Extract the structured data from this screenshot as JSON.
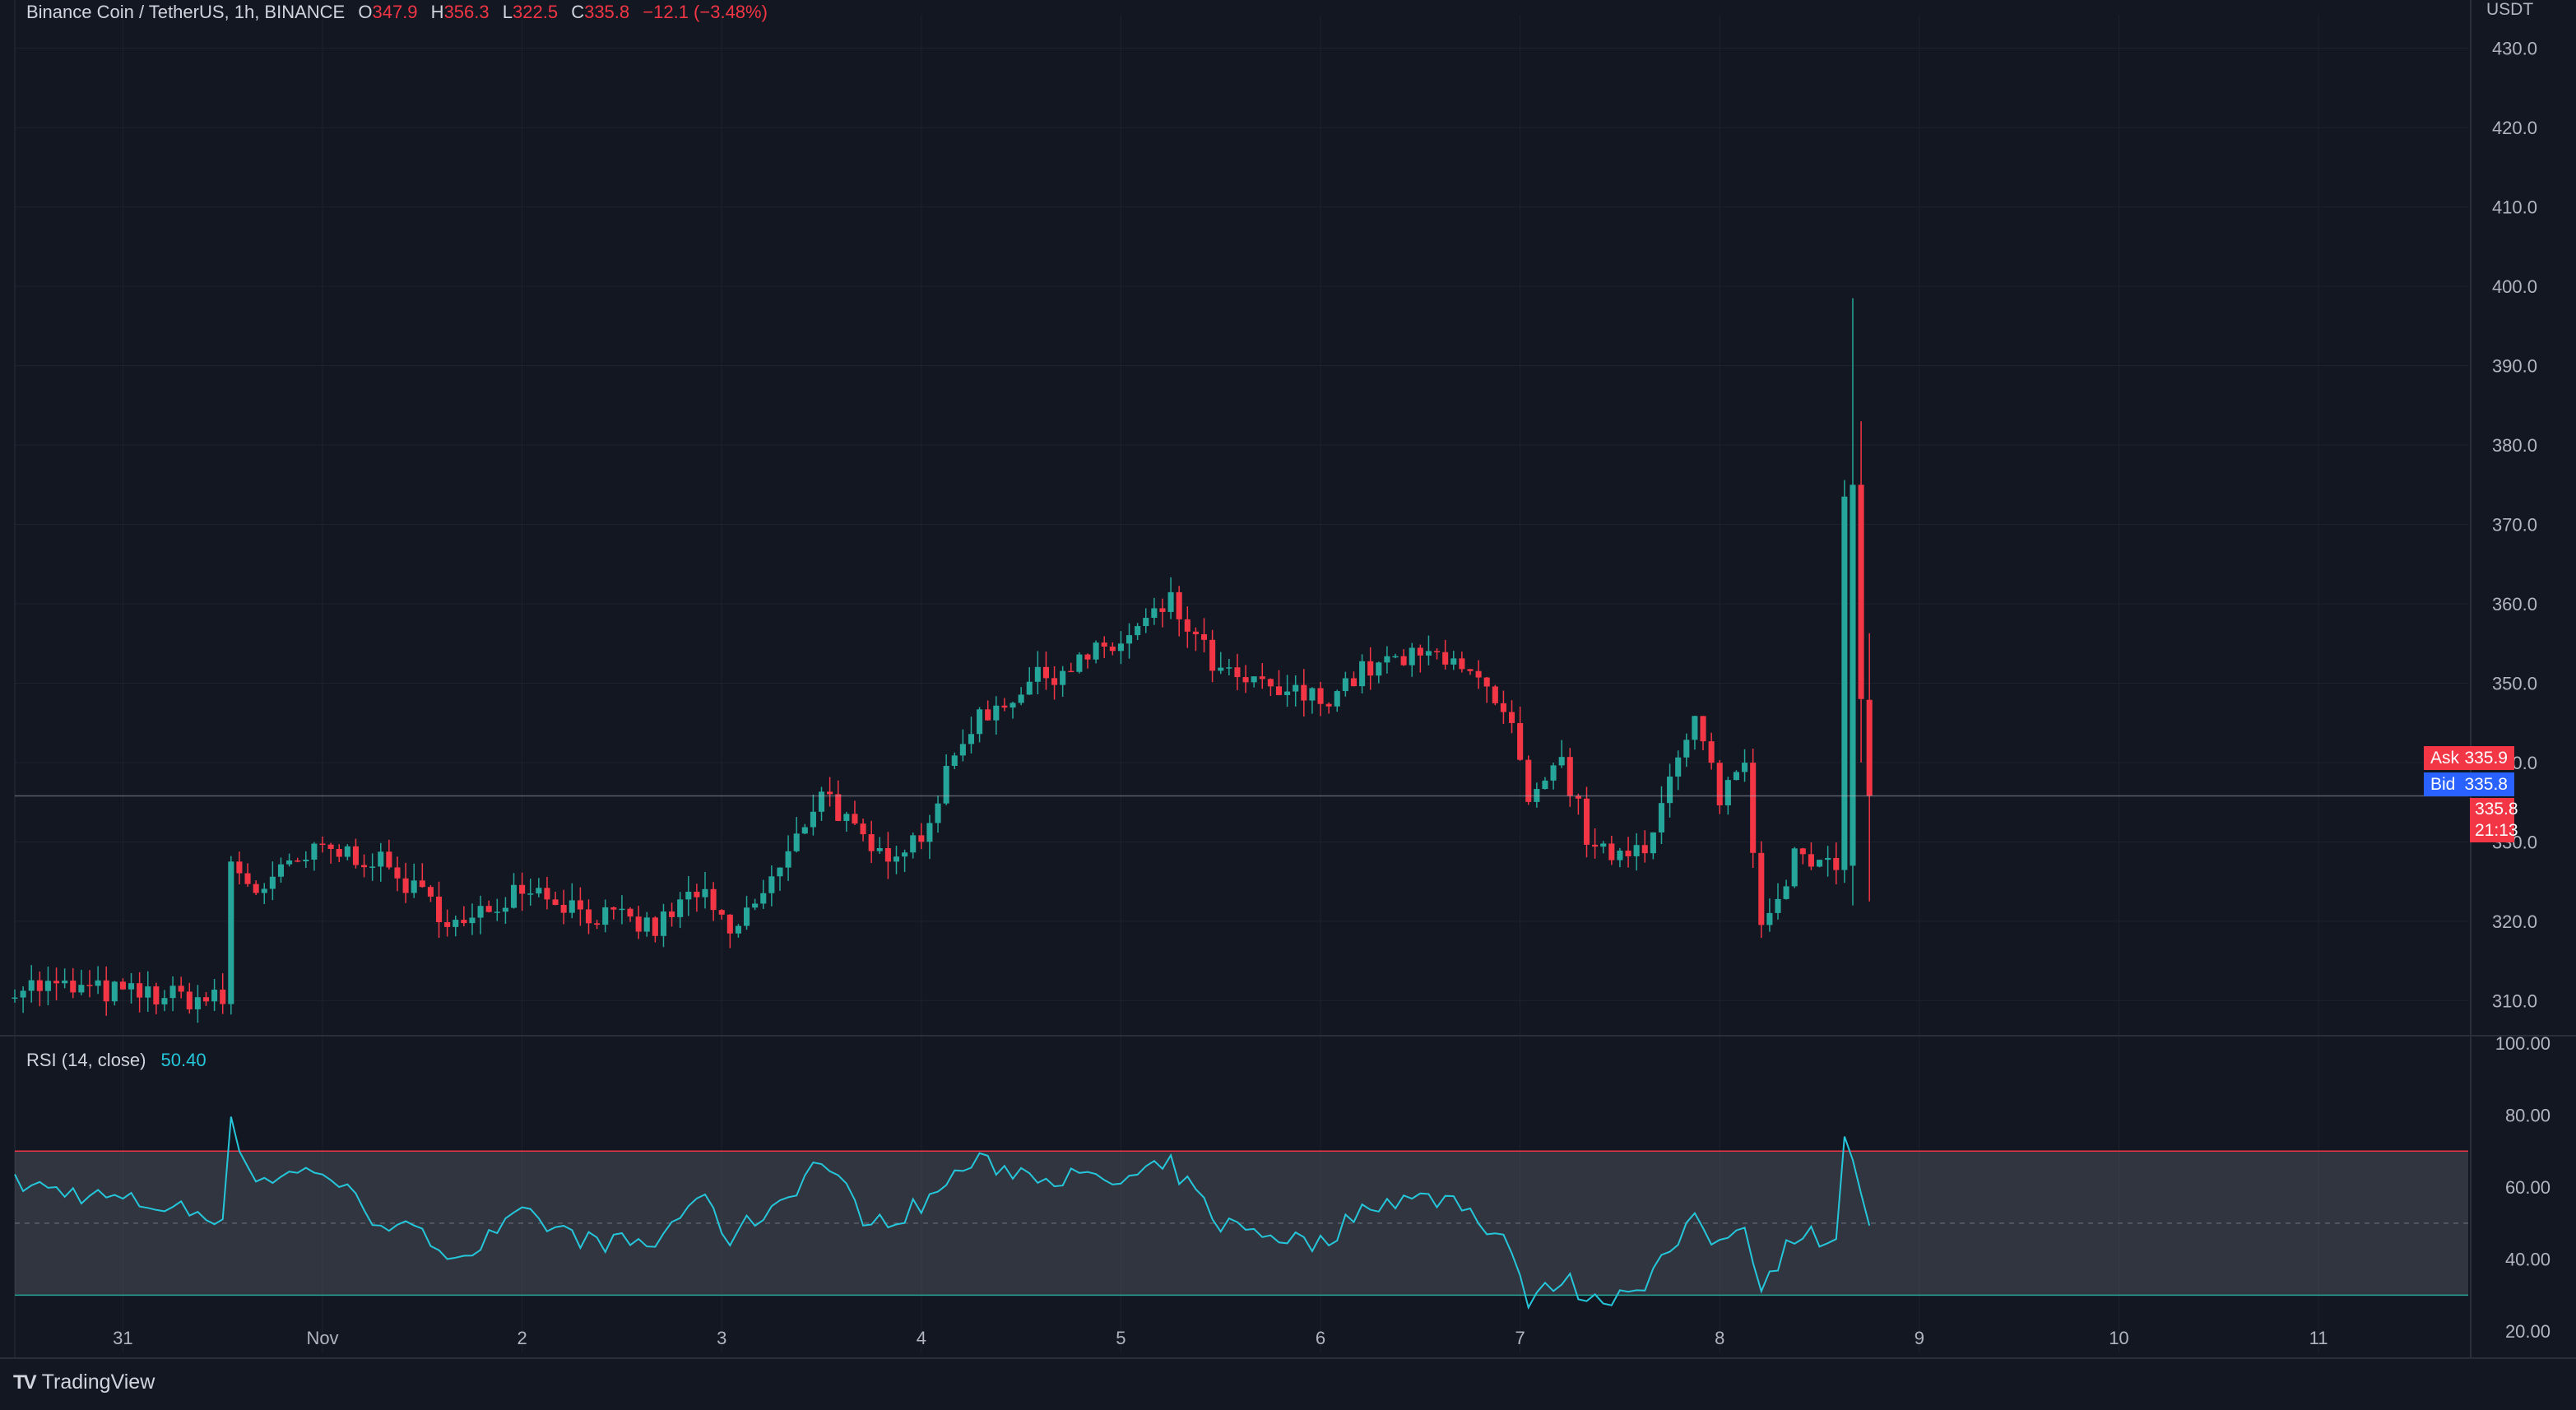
{
  "header": {
    "symbol": "Binance Coin / TetherUS, 1h, BINANCE",
    "o_label": "O",
    "o_value": "347.9",
    "h_label": "H",
    "h_value": "356.3",
    "l_label": "L",
    "l_value": "322.5",
    "c_label": "C",
    "c_value": "335.8",
    "change": "−12.1 (−3.48%)"
  },
  "price_axis": {
    "unit": "USDT",
    "ticks": [
      "430.0",
      "420.0",
      "410.0",
      "400.0",
      "390.0",
      "380.0",
      "370.0",
      "360.0",
      "350.0",
      "340.0",
      "330.0",
      "320.0",
      "310.0"
    ]
  },
  "price_tags": {
    "ask_label": "Ask",
    "ask_value": "335.9",
    "bid_label": "Bid",
    "bid_value": "335.8",
    "last_value": "335.8",
    "countdown": "21:13"
  },
  "rsi": {
    "label": "RSI (14, close)",
    "value": "50.40",
    "ticks": [
      "100.00",
      "80.00",
      "60.00",
      "40.00",
      "20.00"
    ]
  },
  "time_axis": {
    "ticks": [
      "31",
      "Nov",
      "2",
      "3",
      "4",
      "5",
      "6",
      "7",
      "8",
      "9",
      "10",
      "11"
    ]
  },
  "branding": {
    "logo": "TV",
    "name": "TradingView"
  },
  "colors": {
    "background": "#131722",
    "up": "#26a69a",
    "down": "#f23645",
    "rsi_line": "#26c6da",
    "bid": "#2962ff",
    "grid": "#1e222d"
  },
  "chart_data": {
    "type": "candlestick",
    "title": "Binance Coin / TetherUS, 1h, BINANCE",
    "ylim": [
      306,
      434
    ],
    "rsi_ylim": [
      15,
      100
    ],
    "rsi_band": [
      30,
      70
    ],
    "x_start": "2022-10-30T11:00",
    "x_end": "2022-11-11T18:00",
    "last_close_time": "2022-11-08T18:00",
    "anchors": [
      {
        "time": "2022-10-30T11:00",
        "close": 312,
        "rsi": 61
      },
      {
        "time": "2022-10-31T12:00",
        "close": 310,
        "rsi": 52
      },
      {
        "time": "2022-10-31T13:00",
        "close": 327,
        "rsi": 77
      },
      {
        "time": "2022-10-31T16:00",
        "close": 324,
        "rsi": 62
      },
      {
        "time": "2022-11-01T00:00",
        "close": 329,
        "rsi": 65
      },
      {
        "time": "2022-11-01T06:00",
        "close": 328,
        "rsi": 52
      },
      {
        "time": "2022-11-01T17:00",
        "close": 319,
        "rsi": 41
      },
      {
        "time": "2022-11-02T00:00",
        "close": 325,
        "rsi": 52
      },
      {
        "time": "2022-11-02T08:00",
        "close": 321,
        "rsi": 45
      },
      {
        "time": "2022-11-02T16:00",
        "close": 319,
        "rsi": 44
      },
      {
        "time": "2022-11-02T21:00",
        "close": 324,
        "rsi": 58
      },
      {
        "time": "2022-11-03T01:00",
        "close": 318,
        "rsi": 46
      },
      {
        "time": "2022-11-03T08:00",
        "close": 328,
        "rsi": 58
      },
      {
        "time": "2022-11-03T12:00",
        "close": 337,
        "rsi": 68
      },
      {
        "time": "2022-11-03T18:00",
        "close": 328,
        "rsi": 49
      },
      {
        "time": "2022-11-04T00:00",
        "close": 331,
        "rsi": 55
      },
      {
        "time": "2022-11-04T06:00",
        "close": 345,
        "rsi": 67
      },
      {
        "time": "2022-11-04T13:00",
        "close": 350,
        "rsi": 64
      },
      {
        "time": "2022-11-05T00:00",
        "close": 355,
        "rsi": 61
      },
      {
        "time": "2022-11-05T06:00",
        "close": 360,
        "rsi": 66
      },
      {
        "time": "2022-11-05T12:00",
        "close": 351,
        "rsi": 50
      },
      {
        "time": "2022-11-05T18:00",
        "close": 349,
        "rsi": 47
      },
      {
        "time": "2022-11-06T00:00",
        "close": 348,
        "rsi": 44
      },
      {
        "time": "2022-11-06T06:00",
        "close": 352,
        "rsi": 56
      },
      {
        "time": "2022-11-06T16:00",
        "close": 354,
        "rsi": 57
      },
      {
        "time": "2022-11-06T23:00",
        "close": 344,
        "rsi": 44
      },
      {
        "time": "2022-11-07T01:00",
        "close": 334,
        "rsi": 27
      },
      {
        "time": "2022-11-07T05:00",
        "close": 340,
        "rsi": 35
      },
      {
        "time": "2022-11-07T09:00",
        "close": 328,
        "rsi": 28
      },
      {
        "time": "2022-11-07T15:00",
        "close": 330,
        "rsi": 34
      },
      {
        "time": "2022-11-07T21:00",
        "close": 345,
        "rsi": 50
      },
      {
        "time": "2022-11-08T00:00",
        "close": 336,
        "rsi": 44
      },
      {
        "time": "2022-11-08T03:00",
        "close": 340,
        "rsi": 51
      },
      {
        "time": "2022-11-08T05:00",
        "close": 320,
        "rsi": 32
      },
      {
        "time": "2022-11-08T09:00",
        "close": 328,
        "rsi": 47
      },
      {
        "time": "2022-11-08T14:00",
        "close": 326,
        "rsi": 46
      },
      {
        "time": "2022-11-08T15:00",
        "close": 375,
        "rsi": 76
      },
      {
        "time": "2022-11-08T17:00",
        "close": 348,
        "rsi": 56
      },
      {
        "time": "2022-11-08T18:00",
        "close": 335.8,
        "rsi": 50.4
      }
    ],
    "spike_candles": [
      {
        "time": "2022-11-08T16:00",
        "open": 327,
        "high": 398.5,
        "low": 322,
        "close": 375
      },
      {
        "time": "2022-11-08T17:00",
        "open": 375,
        "high": 383,
        "low": 340,
        "close": 348
      },
      {
        "time": "2022-11-08T18:00",
        "open": 347.9,
        "high": 356.3,
        "low": 322.5,
        "close": 335.8
      }
    ]
  }
}
